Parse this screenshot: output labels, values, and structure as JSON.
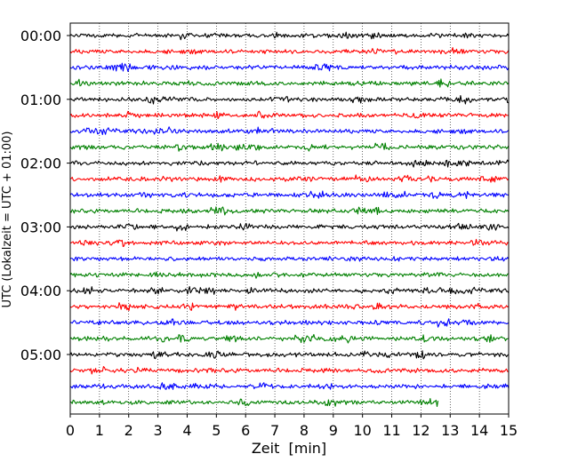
{
  "chart_data": {
    "type": "line",
    "title": "",
    "xlabel": "Zeit  [min]",
    "ylabel": "UTC (Lokalzeit = UTC + 01:00)",
    "xlim": [
      0,
      15
    ],
    "x_ticks": [
      0,
      1,
      2,
      3,
      4,
      5,
      6,
      7,
      8,
      9,
      10,
      11,
      12,
      13,
      14,
      15
    ],
    "x_tick_labels": [
      "0",
      "1",
      "2",
      "3",
      "4",
      "5",
      "6",
      "7",
      "8",
      "9",
      "10",
      "11",
      "12",
      "13",
      "14",
      "15"
    ],
    "y_tick_labels": [
      "00:00",
      "01:00",
      "02:00",
      "03:00",
      "04:00",
      "05:00"
    ],
    "y_tick_rows": [
      0,
      4,
      8,
      12,
      16,
      20
    ],
    "row_interval_min": 15,
    "grid": "vertical dotted at each minute",
    "colors": [
      "#000000",
      "#ff0000",
      "#0000ff",
      "#008000"
    ],
    "rows": [
      {
        "start": "00:00",
        "color": "#000000",
        "duration_min": 15
      },
      {
        "start": "00:15",
        "color": "#ff0000",
        "duration_min": 15
      },
      {
        "start": "00:30",
        "color": "#0000ff",
        "duration_min": 15
      },
      {
        "start": "00:45",
        "color": "#008000",
        "duration_min": 15
      },
      {
        "start": "01:00",
        "color": "#000000",
        "duration_min": 15
      },
      {
        "start": "01:15",
        "color": "#ff0000",
        "duration_min": 15
      },
      {
        "start": "01:30",
        "color": "#0000ff",
        "duration_min": 15
      },
      {
        "start": "01:45",
        "color": "#008000",
        "duration_min": 15
      },
      {
        "start": "02:00",
        "color": "#000000",
        "duration_min": 15
      },
      {
        "start": "02:15",
        "color": "#ff0000",
        "duration_min": 15
      },
      {
        "start": "02:30",
        "color": "#0000ff",
        "duration_min": 15
      },
      {
        "start": "02:45",
        "color": "#008000",
        "duration_min": 15
      },
      {
        "start": "03:00",
        "color": "#000000",
        "duration_min": 15
      },
      {
        "start": "03:15",
        "color": "#ff0000",
        "duration_min": 15
      },
      {
        "start": "03:30",
        "color": "#0000ff",
        "duration_min": 15
      },
      {
        "start": "03:45",
        "color": "#008000",
        "duration_min": 15
      },
      {
        "start": "04:00",
        "color": "#000000",
        "duration_min": 15
      },
      {
        "start": "04:15",
        "color": "#ff0000",
        "duration_min": 15
      },
      {
        "start": "04:30",
        "color": "#0000ff",
        "duration_min": 15
      },
      {
        "start": "04:45",
        "color": "#008000",
        "duration_min": 15
      },
      {
        "start": "05:00",
        "color": "#000000",
        "duration_min": 15
      },
      {
        "start": "05:15",
        "color": "#ff0000",
        "duration_min": 15
      },
      {
        "start": "05:30",
        "color": "#0000ff",
        "duration_min": 15
      },
      {
        "start": "05:45",
        "color": "#008000",
        "duration_min": 12.6
      }
    ]
  }
}
